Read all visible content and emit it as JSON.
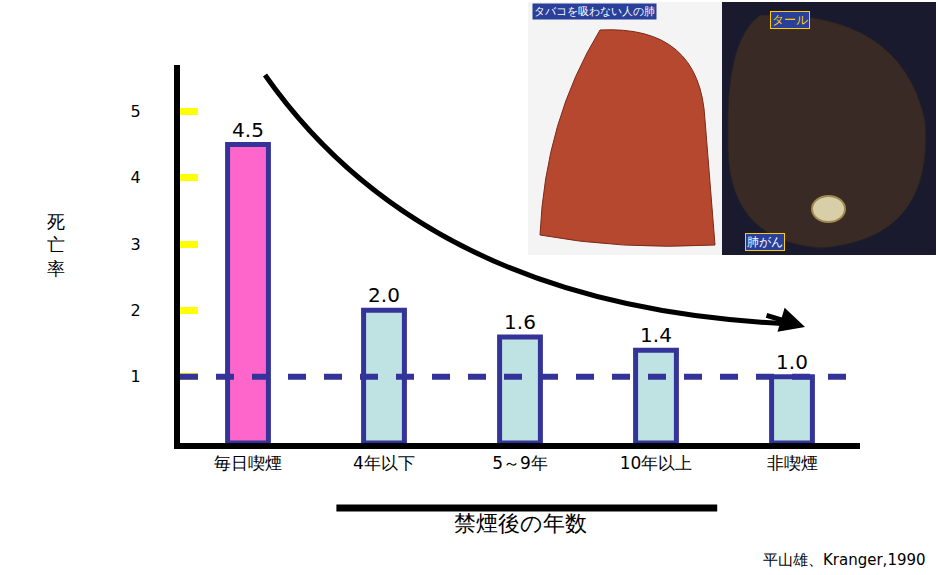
{
  "chart_data": {
    "type": "bar",
    "y_label": "死亡率",
    "categories": [
      "毎日喫煙",
      "4年以下",
      "5～9年",
      "10年以上",
      "非喫煙"
    ],
    "values": [
      4.5,
      2.0,
      1.6,
      1.4,
      1.0
    ],
    "value_labels": [
      "4.5",
      "2.0",
      "1.6",
      "1.4",
      "1.0"
    ],
    "colors": [
      "#ff66cc",
      "#bfe3e3",
      "#bfe3e3",
      "#bfe3e3",
      "#bfe3e3"
    ],
    "data_labels": true,
    "ylim": [
      0,
      5.7
    ],
    "yticks": [
      1,
      2,
      3,
      4,
      5
    ],
    "grid": false,
    "reference_line": 1,
    "group": {
      "label": "禁煙後の年数",
      "categories": [
        "4年以下",
        "5～9年",
        "10年以上"
      ]
    },
    "source": "平山雄、Kranger,1990",
    "inset": {
      "header": "タバコを吸わない人の肺",
      "labels": [
        "タール",
        "肺がん"
      ]
    }
  }
}
